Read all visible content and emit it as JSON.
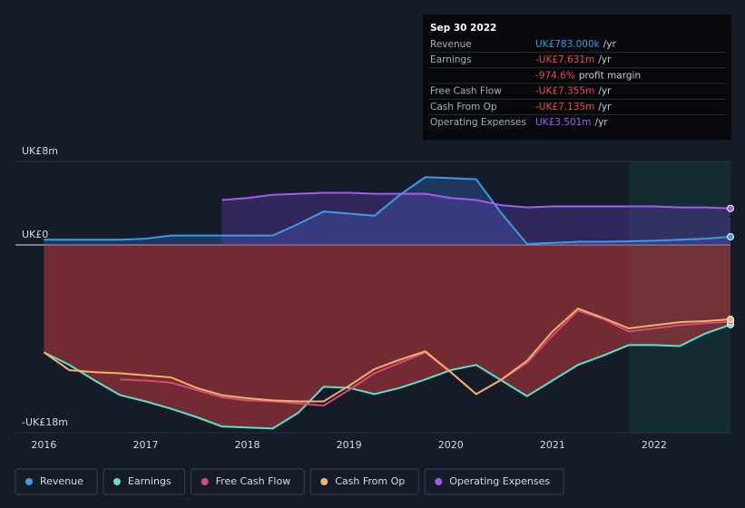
{
  "chart_data": {
    "type": "line",
    "x": [
      2016,
      2016.25,
      2016.5,
      2016.75,
      2017,
      2017.25,
      2017.5,
      2017.75,
      2018,
      2018.25,
      2018.5,
      2018.75,
      2019,
      2019.25,
      2019.5,
      2019.75,
      2020,
      2020.25,
      2020.5,
      2020.75,
      2021,
      2021.25,
      2021.5,
      2021.75,
      2022,
      2022.25,
      2022.5,
      2022.75
    ],
    "xlim": [
      2015.72,
      2022.75
    ],
    "xticks": [
      2016,
      2017,
      2018,
      2019,
      2020,
      2021,
      2022
    ],
    "ylim": [
      -18,
      8
    ],
    "yticks": [
      {
        "value": 8,
        "label": "UK£8m"
      },
      {
        "value": 0,
        "label": "UK£0"
      },
      {
        "value": -18,
        "label": "-UK£18m"
      }
    ],
    "series": [
      {
        "name": "Revenue",
        "color": "#3a9ce6",
        "values": [
          0.5,
          0.5,
          0.5,
          0.5,
          0.6,
          0.9,
          0.9,
          0.9,
          0.9,
          0.9,
          2.0,
          3.2,
          3.0,
          2.8,
          4.8,
          6.5,
          6.4,
          6.3,
          3.0,
          0.1,
          0.2,
          0.3,
          0.3,
          0.35,
          0.4,
          0.5,
          0.6,
          0.783
        ]
      },
      {
        "name": "Earnings",
        "color": "#5fe0c8",
        "values": [
          -10.3,
          -11.5,
          -13.0,
          -14.4,
          -15.0,
          -15.7,
          -16.5,
          -17.4,
          -17.5,
          -17.6,
          -16.1,
          -13.6,
          -13.7,
          -14.3,
          -13.7,
          -12.9,
          -12.0,
          -11.5,
          -13.0,
          -14.5,
          -13.0,
          -11.5,
          -10.6,
          -9.6,
          -9.6,
          -9.7,
          -8.5,
          -7.631
        ]
      },
      {
        "name": "Free Cash Flow",
        "color": "#d84a7e",
        "values": [
          null,
          null,
          null,
          -12.9,
          -13.0,
          -13.2,
          -13.9,
          -14.6,
          -14.9,
          -15.0,
          -15.2,
          -15.4,
          -13.9,
          -12.3,
          -11.3,
          -10.3,
          -12.2,
          -14.3,
          -12.9,
          -11.3,
          -8.7,
          -6.3,
          -7.1,
          -8.3,
          -8.0,
          -7.7,
          -7.5,
          -7.355
        ]
      },
      {
        "name": "Cash From Op",
        "color": "#f0b266",
        "values": [
          -10.3,
          -12.0,
          -12.2,
          -12.3,
          -12.5,
          -12.7,
          -13.7,
          -14.4,
          -14.7,
          -14.9,
          -15.0,
          -15.0,
          -13.5,
          -11.9,
          -11.0,
          -10.2,
          -12.2,
          -14.3,
          -12.9,
          -11.1,
          -8.3,
          -6.1,
          -7.0,
          -8.0,
          -7.7,
          -7.4,
          -7.3,
          -7.135
        ]
      },
      {
        "name": "Operating Expenses",
        "color": "#a35cf0",
        "values": [
          null,
          null,
          null,
          null,
          null,
          null,
          null,
          4.3,
          4.5,
          4.8,
          4.9,
          5.0,
          5.0,
          4.9,
          4.9,
          4.9,
          4.5,
          4.3,
          3.8,
          3.6,
          3.7,
          3.7,
          3.7,
          3.7,
          3.7,
          3.6,
          3.6,
          3.501
        ]
      }
    ]
  },
  "tooltip": {
    "date": "Sep 30 2022",
    "rows": [
      {
        "label": "Revenue",
        "value": "UK£783.000k",
        "unit": "/yr"
      },
      {
        "label": "Earnings",
        "value": "-UK£7.631m",
        "unit": "/yr"
      },
      {
        "label": null,
        "value": "-974.6%",
        "unit": "profit margin"
      },
      {
        "label": "Free Cash Flow",
        "value": "-UK£7.355m",
        "unit": "/yr"
      },
      {
        "label": "Cash From Op",
        "value": "-UK£7.135m",
        "unit": "/yr"
      },
      {
        "label": "Operating Expenses",
        "value": "UK£3.501m",
        "unit": "/yr"
      }
    ]
  }
}
